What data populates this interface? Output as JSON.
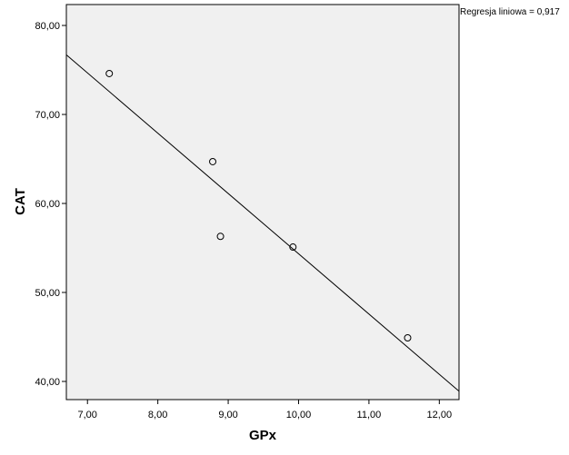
{
  "chart_data": {
    "type": "scatter",
    "annotation": "Regresja liniowa = 0,917",
    "x_label": "GPx",
    "y_label": "CAT",
    "series": [
      {
        "x": [
          7.31,
          8.78,
          8.89,
          9.92,
          11.55
        ],
        "values": [
          74.6,
          64.7,
          56.3,
          55.1,
          44.9
        ],
        "color": "#000000"
      }
    ],
    "regression_line": {
      "x": [
        6.7,
        12.28
      ],
      "y": [
        76.7,
        38.9
      ],
      "color": "#000000"
    },
    "xlim": [
      6.7,
      12.28
    ],
    "ylim": [
      37.96,
      82.35
    ],
    "xticks": [
      {
        "value": 7,
        "label": "7,00"
      },
      {
        "value": 8,
        "label": "8,00"
      },
      {
        "value": 9,
        "label": "9,00"
      },
      {
        "value": 10,
        "label": "10,00"
      },
      {
        "value": 11,
        "label": "11,00"
      },
      {
        "value": 12,
        "label": "12,00"
      }
    ],
    "yticks": [
      {
        "value": 40,
        "label": "40,00"
      },
      {
        "value": 50,
        "label": "50,00"
      },
      {
        "value": 60,
        "label": "60,00"
      },
      {
        "value": 70,
        "label": "70,00"
      },
      {
        "value": 80,
        "label": "80,00"
      }
    ],
    "background": "#f0f0f0"
  }
}
